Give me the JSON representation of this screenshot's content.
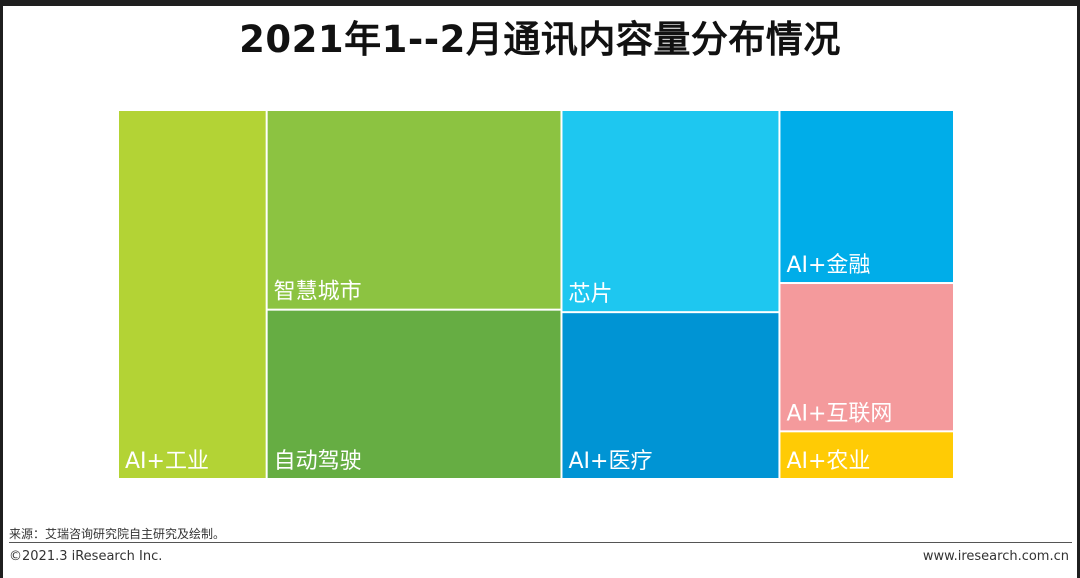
{
  "header": {
    "title": "2021年1--2月通讯内容量分布情况"
  },
  "chart_data": {
    "type": "treemap",
    "categories": [
      "AI+工业",
      "智慧城市",
      "自动驾驶",
      "芯片",
      "AI+医疗",
      "AI+金融",
      "AI+互联网",
      "AI+农业"
    ],
    "values": [
      17.8,
      19.1,
      16.2,
      14.3,
      11.8,
      9.8,
      8.4,
      2.7
    ],
    "colors": [
      "#b3d335",
      "#8cc341",
      "#66ad43",
      "#1ec7f0",
      "#0094d4",
      "#00ade9",
      "#f49a9c",
      "#ffcb05"
    ]
  },
  "footer": {
    "source": "来源：艾瑞咨询研究院自主研究及绘制。",
    "copyright": "©2021.3 iResearch Inc.",
    "website": "www.iresearch.com.cn"
  }
}
